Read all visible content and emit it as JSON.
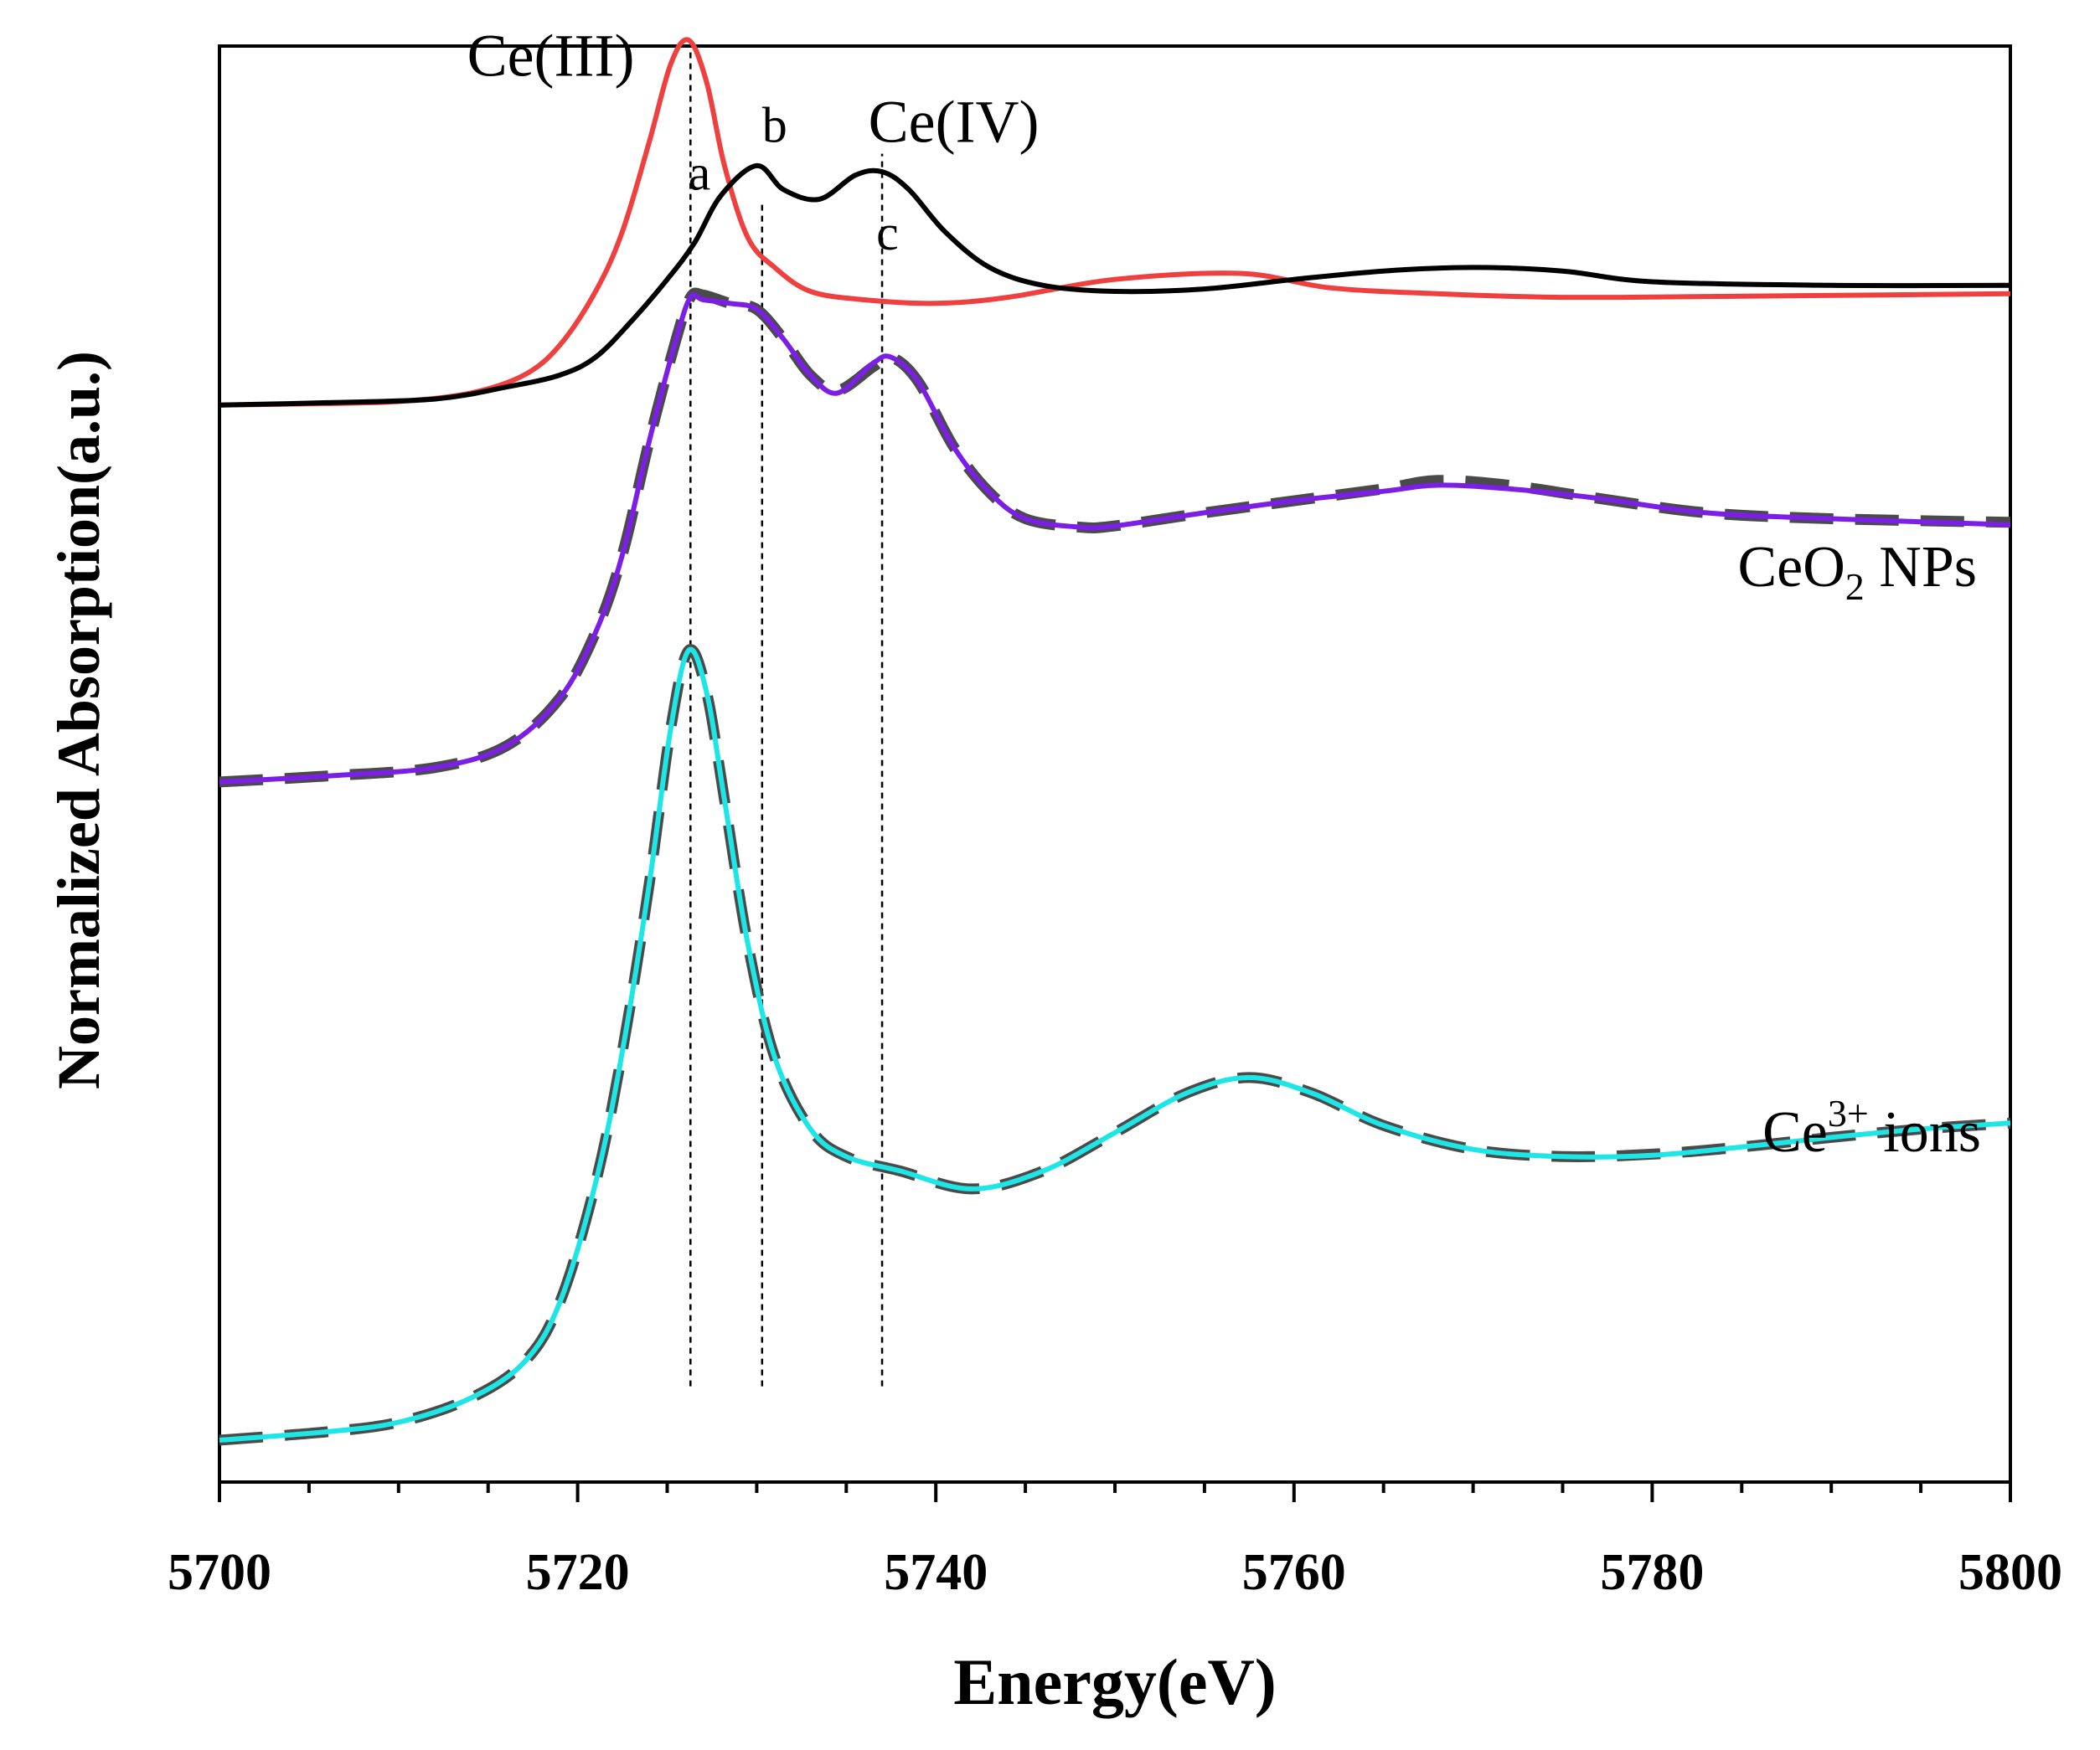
{
  "chart_data": {
    "type": "line",
    "title": "",
    "xlabel": "Energy(eV)",
    "ylabel": "Normalized Absorption(a.u.)",
    "xlim": [
      5700,
      5800
    ],
    "ylim": [
      0,
      12
    ],
    "xticks": [
      5700,
      5720,
      5740,
      5760,
      5780,
      5800
    ],
    "xtick_labels": [
      "5700",
      "5720",
      "5740",
      "5760",
      "5780",
      "5800"
    ],
    "grid": false,
    "legend": "none",
    "colors": {
      "ce3_ref": "#ef4040",
      "ce4_ref": "#000000",
      "ceo2_fit": "#4a4a4a",
      "ceo2_data": "#7b1fe6",
      "ce3_fit": "#4a4a4a",
      "ce3_data": "#1ee6e6",
      "guides": "#000000"
    },
    "series": [
      {
        "name": "Ce(III) reference",
        "style": "solid",
        "color_key": "ce3_ref",
        "x": [
          5700,
          5705,
          5710,
          5714,
          5717,
          5719,
          5721,
          5722.5,
          5724,
          5725.2,
          5726.2,
          5727.2,
          5728.2,
          5729.5,
          5731,
          5733,
          5736,
          5740,
          5744,
          5750,
          5757,
          5762,
          5768,
          5775,
          5785,
          5800
        ],
        "y": [
          9.0,
          9.01,
          9.03,
          9.1,
          9.25,
          9.5,
          9.95,
          10.45,
          11.2,
          11.85,
          12.05,
          11.7,
          11.0,
          10.4,
          10.15,
          9.95,
          9.88,
          9.85,
          9.9,
          10.05,
          10.1,
          9.98,
          9.93,
          9.9,
          9.91,
          9.93
        ]
      },
      {
        "name": "Ce(IV) reference",
        "style": "solid",
        "color_key": "ce4_ref",
        "x": [
          5700,
          5706,
          5712,
          5716,
          5719,
          5721,
          5723,
          5725,
          5726.5,
          5728,
          5730,
          5731.5,
          5733.5,
          5735.5,
          5737,
          5738.5,
          5740.5,
          5743,
          5746,
          5750,
          5755,
          5760,
          5765,
          5770,
          5775,
          5780,
          5790,
          5800
        ],
        "y": [
          9.0,
          9.02,
          9.05,
          9.15,
          9.25,
          9.4,
          9.7,
          10.05,
          10.35,
          10.75,
          11.0,
          10.8,
          10.72,
          10.92,
          10.95,
          10.8,
          10.45,
          10.15,
          10.0,
          9.95,
          9.97,
          10.05,
          10.12,
          10.15,
          10.12,
          10.03,
          10.0,
          10.0
        ]
      },
      {
        "name": "CeO2 NPs fit",
        "style": "dashed",
        "color_key": "ceo2_fit",
        "x": [
          5700,
          5706,
          5712,
          5716,
          5719,
          5721,
          5722.5,
          5724,
          5725.5,
          5726.3,
          5727,
          5728.5,
          5730,
          5731.5,
          5733,
          5734.5,
          5736.5,
          5737.5,
          5739,
          5741,
          5743,
          5745,
          5748,
          5750,
          5755,
          5760,
          5765,
          5768,
          5772,
          5777,
          5783,
          5790,
          5800
        ],
        "y": [
          5.85,
          5.9,
          5.97,
          6.15,
          6.55,
          7.1,
          7.75,
          8.7,
          9.55,
          9.9,
          9.92,
          9.85,
          9.8,
          9.55,
          9.25,
          9.12,
          9.32,
          9.4,
          9.2,
          8.65,
          8.27,
          8.05,
          7.98,
          7.99,
          8.1,
          8.2,
          8.3,
          8.37,
          8.33,
          8.22,
          8.1,
          8.05,
          8.02
        ]
      },
      {
        "name": "CeO2 NPs",
        "style": "solid",
        "color_key": "ceo2_data",
        "x": [
          5700,
          5706,
          5712,
          5716,
          5719,
          5721,
          5722.5,
          5724,
          5725.5,
          5726.3,
          5727,
          5728.5,
          5730,
          5731.5,
          5733,
          5734.5,
          5736.5,
          5737.5,
          5739,
          5741,
          5743,
          5745,
          5748,
          5750,
          5755,
          5760,
          5765,
          5768,
          5772,
          5777,
          5783,
          5790,
          5800
        ],
        "y": [
          5.85,
          5.9,
          5.97,
          6.15,
          6.55,
          7.1,
          7.75,
          8.7,
          9.55,
          9.9,
          9.88,
          9.85,
          9.8,
          9.55,
          9.25,
          9.1,
          9.35,
          9.4,
          9.2,
          8.65,
          8.27,
          8.05,
          7.98,
          7.99,
          8.1,
          8.2,
          8.28,
          8.33,
          8.3,
          8.22,
          8.1,
          8.05,
          8.0
        ]
      },
      {
        "name": "Ce3+ ions fit",
        "style": "dashed",
        "color_key": "ce3_fit",
        "x": [
          5700,
          5706,
          5710,
          5714,
          5717,
          5719,
          5721,
          5722.5,
          5724,
          5725.2,
          5726.2,
          5727.2,
          5728.2,
          5729.5,
          5731,
          5733,
          5735,
          5738,
          5742,
          5746,
          5750,
          5754,
          5757.5,
          5761,
          5765,
          5770,
          5775,
          5780,
          5785,
          5790,
          5795,
          5800
        ],
        "y": [
          0.35,
          0.42,
          0.5,
          0.7,
          1.0,
          1.5,
          2.5,
          3.6,
          5.0,
          6.3,
          6.95,
          6.6,
          5.7,
          4.5,
          3.55,
          2.95,
          2.72,
          2.6,
          2.45,
          2.6,
          2.92,
          3.25,
          3.38,
          3.25,
          2.98,
          2.78,
          2.72,
          2.74,
          2.8,
          2.88,
          2.95,
          3.0
        ]
      },
      {
        "name": "Ce3+ ions",
        "style": "solid",
        "color_key": "ce3_data",
        "x": [
          5700,
          5706,
          5710,
          5714,
          5717,
          5719,
          5721,
          5722.5,
          5724,
          5725.2,
          5726.2,
          5727.2,
          5728.2,
          5729.5,
          5731,
          5733,
          5735,
          5738,
          5742,
          5746,
          5750,
          5754,
          5757.5,
          5761,
          5765,
          5770,
          5775,
          5780,
          5785,
          5790,
          5795,
          5800
        ],
        "y": [
          0.35,
          0.42,
          0.5,
          0.7,
          1.0,
          1.5,
          2.5,
          3.6,
          5.0,
          6.3,
          6.95,
          6.6,
          5.7,
          4.5,
          3.55,
          2.95,
          2.72,
          2.6,
          2.45,
          2.6,
          2.92,
          3.25,
          3.38,
          3.25,
          2.98,
          2.78,
          2.72,
          2.73,
          2.8,
          2.88,
          2.95,
          3.0
        ]
      }
    ],
    "guides": [
      {
        "x": 5726.3,
        "y_from": 0.8,
        "y_to": 12.0
      },
      {
        "x": 5730.3,
        "y_from": 0.8,
        "y_to": 10.7
      },
      {
        "x": 5737.0,
        "y_from": 0.8,
        "y_to": 11.1
      }
    ],
    "annotations": [
      {
        "text": "Ce(III)",
        "x": 5718.5,
        "y": 11.75,
        "kind": "title"
      },
      {
        "text": "Ce(IV)",
        "x": 5741.0,
        "y": 11.2,
        "kind": "title"
      },
      {
        "text": "a",
        "x": 5726.8,
        "y": 10.8,
        "kind": "letter"
      },
      {
        "text": "b",
        "x": 5731.0,
        "y": 11.2,
        "kind": "letter"
      },
      {
        "text": "c",
        "x": 5737.3,
        "y": 10.3,
        "kind": "letter"
      }
    ],
    "series_labels": {
      "ceo2": {
        "main": "CeO",
        "sub": "2",
        "tail": " NPs"
      },
      "ce3": {
        "main": "Ce",
        "sup": "3+",
        "tail": " ions"
      }
    }
  }
}
